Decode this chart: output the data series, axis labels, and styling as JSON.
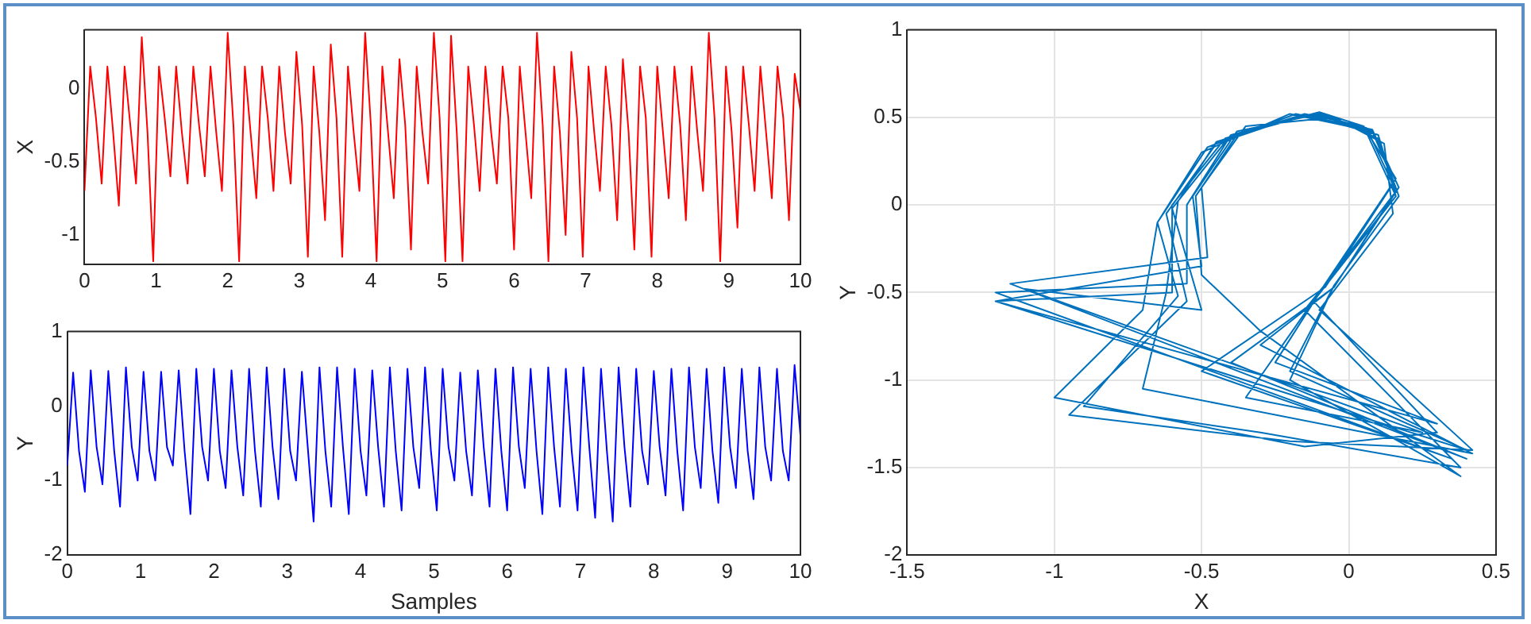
{
  "chart_data": [
    {
      "type": "line",
      "ylabel": "X",
      "xlim": [
        0,
        10
      ],
      "xticks": [
        0,
        1,
        2,
        3,
        4,
        5,
        6,
        7,
        8,
        9,
        10
      ],
      "ylim": [
        -1.2,
        0.4
      ],
      "yticks": [
        -1,
        -0.5,
        0
      ],
      "grid": false,
      "x": [
        0,
        0.08,
        0.16,
        0.24,
        0.32,
        0.4,
        0.48,
        0.56,
        0.64,
        0.72,
        0.8,
        0.88,
        0.96,
        1.04,
        1.12,
        1.2,
        1.28,
        1.36,
        1.44,
        1.52,
        1.6,
        1.68,
        1.76,
        1.84,
        1.92,
        2,
        2.08,
        2.16,
        2.24,
        2.32,
        2.4,
        2.48,
        2.56,
        2.64,
        2.72,
        2.8,
        2.88,
        2.96,
        3.04,
        3.12,
        3.2,
        3.28,
        3.36,
        3.44,
        3.52,
        3.6,
        3.68,
        3.76,
        3.84,
        3.92,
        4,
        4.08,
        4.16,
        4.24,
        4.32,
        4.4,
        4.48,
        4.56,
        4.64,
        4.72,
        4.8,
        4.88,
        4.96,
        5.04,
        5.12,
        5.2,
        5.28,
        5.36,
        5.44,
        5.52,
        5.6,
        5.68,
        5.76,
        5.84,
        5.92,
        6,
        6.08,
        6.16,
        6.24,
        6.32,
        6.4,
        6.48,
        6.56,
        6.64,
        6.72,
        6.8,
        6.88,
        6.96,
        7.04,
        7.12,
        7.2,
        7.28,
        7.36,
        7.44,
        7.52,
        7.6,
        7.68,
        7.76,
        7.84,
        7.92,
        8,
        8.08,
        8.16,
        8.24,
        8.32,
        8.4,
        8.48,
        8.56,
        8.64,
        8.72,
        8.8,
        8.88,
        8.96,
        9.04,
        9.12,
        9.2,
        9.28,
        9.36,
        9.44,
        9.52,
        9.6,
        9.68,
        9.76,
        9.84,
        9.92,
        10
      ],
      "series": [
        {
          "color": "#ff0000",
          "values": [
            -0.7,
            0.15,
            -0.2,
            -0.65,
            0.15,
            -0.3,
            -0.8,
            0.15,
            -0.25,
            -0.65,
            0.35,
            -0.3,
            -1.18,
            0.15,
            -0.2,
            -0.6,
            0.15,
            -0.3,
            -0.65,
            0.15,
            -0.25,
            -0.6,
            0.15,
            -0.3,
            -0.7,
            0.38,
            -0.25,
            -1.18,
            0.15,
            -0.3,
            -0.75,
            0.15,
            -0.2,
            -0.7,
            0.15,
            -0.3,
            -0.65,
            0.25,
            -0.25,
            -1.15,
            0.15,
            -0.3,
            -0.9,
            0.3,
            -0.2,
            -1.15,
            0.15,
            -0.3,
            -0.7,
            0.38,
            -0.25,
            -1.18,
            0.15,
            -0.3,
            -0.75,
            0.2,
            -0.25,
            -1.1,
            0.15,
            -0.3,
            -0.65,
            0.38,
            -0.2,
            -1.18,
            0.36,
            -0.3,
            -1.18,
            0.15,
            -0.25,
            -0.7,
            0.15,
            -0.3,
            -0.65,
            0.15,
            -0.2,
            -1.1,
            0.15,
            -0.3,
            -0.75,
            0.38,
            -0.25,
            -1.18,
            0.15,
            -0.3,
            -1.0,
            0.25,
            -0.2,
            -1.15,
            0.15,
            -0.3,
            -0.7,
            0.15,
            -0.25,
            -0.9,
            0.2,
            -0.3,
            -1.1,
            0.15,
            -0.2,
            -1.15,
            0.15,
            -0.3,
            -0.75,
            0.15,
            -0.25,
            -0.9,
            0.15,
            -0.3,
            -0.7,
            0.38,
            -0.2,
            -1.18,
            0.15,
            -0.3,
            -0.95,
            0.15,
            -0.25,
            -0.7,
            0.15,
            -0.3,
            -0.75,
            0.15,
            -0.2,
            -0.9,
            0.1,
            -0.15
          ]
        }
      ]
    },
    {
      "type": "line",
      "ylabel": "Y",
      "xlabel": "Samples",
      "xlim": [
        0,
        10
      ],
      "xticks": [
        0,
        1,
        2,
        3,
        4,
        5,
        6,
        7,
        8,
        9,
        10
      ],
      "ylim": [
        -2,
        1
      ],
      "yticks": [
        -2,
        -1,
        0,
        1
      ],
      "grid": false,
      "x": [
        0,
        0.08,
        0.16,
        0.24,
        0.32,
        0.4,
        0.48,
        0.56,
        0.64,
        0.72,
        0.8,
        0.88,
        0.96,
        1.04,
        1.12,
        1.2,
        1.28,
        1.36,
        1.44,
        1.52,
        1.6,
        1.68,
        1.76,
        1.84,
        1.92,
        2,
        2.08,
        2.16,
        2.24,
        2.32,
        2.4,
        2.48,
        2.56,
        2.64,
        2.72,
        2.8,
        2.88,
        2.96,
        3.04,
        3.12,
        3.2,
        3.28,
        3.36,
        3.44,
        3.52,
        3.6,
        3.68,
        3.76,
        3.84,
        3.92,
        4,
        4.08,
        4.16,
        4.24,
        4.32,
        4.4,
        4.48,
        4.56,
        4.64,
        4.72,
        4.8,
        4.88,
        4.96,
        5.04,
        5.12,
        5.2,
        5.28,
        5.36,
        5.44,
        5.52,
        5.6,
        5.68,
        5.76,
        5.84,
        5.92,
        6,
        6.08,
        6.16,
        6.24,
        6.32,
        6.4,
        6.48,
        6.56,
        6.64,
        6.72,
        6.8,
        6.88,
        6.96,
        7.04,
        7.12,
        7.2,
        7.28,
        7.36,
        7.44,
        7.52,
        7.6,
        7.68,
        7.76,
        7.84,
        7.92,
        8,
        8.08,
        8.16,
        8.24,
        8.32,
        8.4,
        8.48,
        8.56,
        8.64,
        8.72,
        8.8,
        8.88,
        8.96,
        9.04,
        9.12,
        9.2,
        9.28,
        9.36,
        9.44,
        9.52,
        9.6,
        9.68,
        9.76,
        9.84,
        9.92,
        10
      ],
      "series": [
        {
          "color": "#0000ff",
          "values": [
            -0.8,
            0.45,
            -0.6,
            -1.15,
            0.48,
            -0.55,
            -1.05,
            0.47,
            -0.6,
            -1.35,
            0.52,
            -0.55,
            -1.0,
            0.46,
            -0.6,
            -1.0,
            0.46,
            -0.55,
            -0.8,
            0.48,
            -0.6,
            -1.45,
            0.5,
            -0.55,
            -1.0,
            0.5,
            -0.6,
            -1.1,
            0.48,
            -0.55,
            -1.2,
            0.5,
            -0.6,
            -1.35,
            0.52,
            -0.55,
            -1.25,
            0.5,
            -0.6,
            -1.0,
            0.46,
            -0.55,
            -1.55,
            0.52,
            -0.6,
            -1.35,
            0.52,
            -0.55,
            -1.45,
            0.5,
            -0.6,
            -1.2,
            0.48,
            -0.55,
            -1.35,
            0.52,
            -0.6,
            -1.4,
            0.5,
            -0.55,
            -1.1,
            0.52,
            -0.6,
            -1.4,
            0.5,
            -0.55,
            -1.0,
            0.45,
            -0.6,
            -1.2,
            0.48,
            -0.55,
            -1.35,
            0.5,
            -0.6,
            -1.4,
            0.52,
            -0.55,
            -1.1,
            0.5,
            -0.6,
            -1.45,
            0.52,
            -0.55,
            -1.35,
            0.5,
            -0.6,
            -1.4,
            0.52,
            -0.55,
            -1.5,
            0.5,
            -0.6,
            -1.55,
            0.52,
            -0.55,
            -1.35,
            0.5,
            -0.6,
            -1.05,
            0.47,
            -0.55,
            -1.2,
            0.5,
            -0.6,
            -1.4,
            0.52,
            -0.55,
            -1.1,
            0.5,
            -0.6,
            -1.3,
            0.52,
            -0.55,
            -1.1,
            0.5,
            -0.6,
            -1.25,
            0.52,
            -0.55,
            -1.0,
            0.5,
            -0.6,
            -1.0,
            0.55,
            -0.4
          ]
        }
      ]
    },
    {
      "type": "line",
      "xlabel": "X",
      "ylabel": "Y",
      "xlim": [
        -1.5,
        0.5
      ],
      "xticks": [
        -1.5,
        -1,
        -0.5,
        0,
        0.5
      ],
      "ylim": [
        -2,
        1
      ],
      "yticks": [
        -2,
        -1.5,
        -1,
        -0.5,
        0,
        0.5,
        1
      ],
      "grid": true,
      "series": [
        {
          "color": "#0072bd",
          "x": [
            0.16,
            0.08,
            -0.12,
            -0.38,
            -0.52,
            -0.5,
            -0.3,
            0.38,
            -0.2,
            -0.05,
            0.17,
            0.1,
            -0.1,
            -0.42,
            -0.6,
            -0.6,
            -1.2,
            0.3,
            -0.25,
            -0.08,
            0.16,
            0.05,
            -0.15,
            -0.45,
            -0.62,
            -0.55,
            -0.95,
            -0.2,
            0.42,
            -0.1,
            0.15,
            0.12,
            -0.05,
            -0.35,
            -0.5,
            -0.48,
            -1.15,
            0.4,
            -0.4,
            -0.05,
            0.17,
            0.08,
            -0.2,
            -0.5,
            -0.65,
            -0.7,
            -1.0,
            -0.15,
            0.3,
            -0.12,
            0.16,
            0.05,
            -0.1,
            -0.4,
            -0.55,
            -0.55,
            -1.2,
            0.35,
            -0.5,
            -0.08,
            0.15,
            0.1,
            -0.15,
            -0.45,
            -0.58,
            -0.62,
            -0.7,
            0.42,
            -0.3,
            -0.05,
            0.16,
            0.06,
            -0.12,
            -0.4,
            -0.6,
            -0.5,
            -1.1,
            0.25,
            -0.35,
            -0.1,
            0.17,
            0.08,
            -0.18,
            -0.48,
            -0.65,
            -0.58,
            -0.9,
            -0.3,
            0.38,
            -0.15,
            0.16,
            0.1,
            -0.1,
            -0.38,
            -0.53,
            -0.5,
            -1.2,
            0.4,
            -0.2,
            -0.05
          ],
          "values": [
            0.1,
            0.42,
            0.52,
            0.4,
            0.05,
            -0.4,
            -0.72,
            -1.55,
            -1.0,
            -0.46,
            0.05,
            0.38,
            0.53,
            0.38,
            0.0,
            -0.5,
            -0.55,
            -1.25,
            -0.9,
            -0.45,
            0.15,
            0.45,
            0.52,
            0.35,
            -0.05,
            -0.55,
            -1.2,
            -1.35,
            -1.4,
            -0.6,
            -0.05,
            0.35,
            0.5,
            0.45,
            0.1,
            -0.3,
            -0.45,
            -1.45,
            -0.9,
            -0.47,
            0.1,
            0.42,
            0.52,
            0.3,
            -0.1,
            -0.6,
            -1.1,
            -1.38,
            -1.3,
            -0.55,
            0.05,
            0.45,
            0.53,
            0.4,
            0.0,
            -0.45,
            -0.5,
            -1.45,
            -0.95,
            -0.47,
            0.12,
            0.4,
            0.52,
            0.36,
            0.02,
            -0.5,
            -1.05,
            -1.42,
            -0.8,
            -0.47,
            0.08,
            0.44,
            0.52,
            0.4,
            -0.02,
            -0.6,
            -0.48,
            -1.3,
            -1.1,
            -0.5,
            0.1,
            0.43,
            0.52,
            0.33,
            -0.1,
            -0.52,
            -1.15,
            -1.3,
            -1.5,
            -0.6,
            0.05,
            0.4,
            0.52,
            0.42,
            0.05,
            -0.35,
            -0.55,
            -1.4,
            -0.95,
            -0.46
          ]
        }
      ]
    }
  ]
}
